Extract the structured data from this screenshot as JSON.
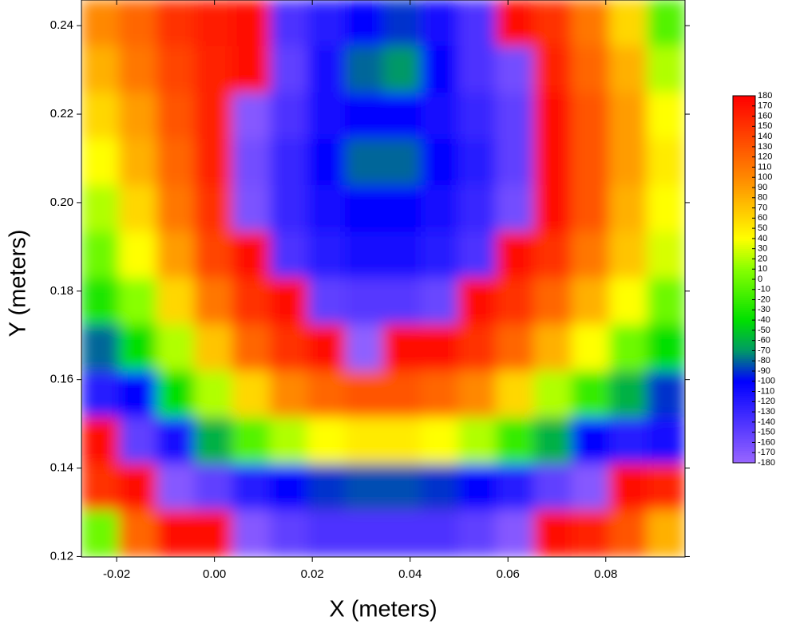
{
  "chart_data": {
    "type": "heatmap",
    "xlabel": "X (meters)",
    "ylabel": "Y (meters)",
    "xlim": [
      -0.0272,
      0.0962
    ],
    "ylim": [
      0.1199,
      0.2458
    ],
    "xticks": [
      -0.02,
      {
        "value": 0,
        "label": "0.00"
      },
      0.02,
      0.04,
      0.06,
      0.08
    ],
    "yticks": [
      0.12,
      0.14,
      0.16,
      0.18,
      {
        "value": 0.2,
        "label": "0.20"
      },
      0.22,
      0.24
    ],
    "z": [
      [
        100,
        120,
        150,
        165,
        175,
        -140,
        -120,
        -100,
        -90,
        -110,
        -140,
        175,
        150,
        110,
        60,
        -10
      ],
      [
        80,
        110,
        140,
        160,
        175,
        -150,
        -110,
        -80,
        -70,
        -100,
        -140,
        -160,
        160,
        120,
        80,
        20
      ],
      [
        60,
        90,
        130,
        160,
        -170,
        -140,
        -110,
        -100,
        -100,
        -110,
        -130,
        -150,
        170,
        130,
        90,
        40
      ],
      [
        40,
        80,
        120,
        160,
        -160,
        -130,
        -100,
        -80,
        -80,
        -100,
        -120,
        -150,
        170,
        130,
        90,
        50
      ],
      [
        20,
        60,
        110,
        150,
        -165,
        -130,
        -110,
        -100,
        -100,
        -110,
        -130,
        -160,
        170,
        130,
        80,
        40
      ],
      [
        0,
        40,
        90,
        140,
        175,
        -140,
        -120,
        -110,
        -110,
        -120,
        -140,
        175,
        150,
        110,
        70,
        30
      ],
      [
        -30,
        10,
        60,
        110,
        150,
        175,
        -150,
        -145,
        -145,
        -155,
        170,
        150,
        120,
        80,
        40,
        0
      ],
      [
        -80,
        -40,
        20,
        70,
        120,
        150,
        170,
        -175,
        175,
        170,
        150,
        120,
        80,
        40,
        0,
        -40
      ],
      [
        -120,
        -100,
        -40,
        20,
        60,
        100,
        120,
        130,
        130,
        120,
        100,
        60,
        20,
        -20,
        -60,
        -90
      ],
      [
        170,
        -150,
        -110,
        -60,
        -10,
        20,
        40,
        50,
        50,
        40,
        20,
        -20,
        -60,
        -100,
        -120,
        -110
      ],
      [
        150,
        170,
        -170,
        -150,
        -120,
        -100,
        -90,
        -85,
        -85,
        -90,
        -100,
        -120,
        -150,
        -170,
        170,
        160
      ],
      [
        0,
        120,
        170,
        175,
        -170,
        -150,
        -140,
        -140,
        -140,
        -140,
        -150,
        -170,
        175,
        160,
        130,
        80
      ]
    ],
    "colorbar": {
      "lim": [
        -180,
        180
      ],
      "ticks": [
        180,
        170,
        160,
        150,
        140,
        130,
        120,
        110,
        100,
        90,
        80,
        70,
        60,
        50,
        40,
        30,
        20,
        10,
        0,
        -10,
        -20,
        -30,
        -40,
        -50,
        -60,
        -70,
        -80,
        -90,
        -100,
        -110,
        -120,
        -130,
        -140,
        -150,
        -160,
        -170,
        -180
      ]
    },
    "colorscale": [
      {
        "value": -180,
        "color": "#9966ff"
      },
      {
        "value": -100,
        "color": "#0000ff"
      },
      {
        "value": -70,
        "color": "#009966"
      },
      {
        "value": -40,
        "color": "#00e000"
      },
      {
        "value": 10,
        "color": "#88ff00"
      },
      {
        "value": 40,
        "color": "#ffff00"
      },
      {
        "value": 100,
        "color": "#ff8800"
      },
      {
        "value": 180,
        "color": "#ff0000"
      }
    ]
  }
}
